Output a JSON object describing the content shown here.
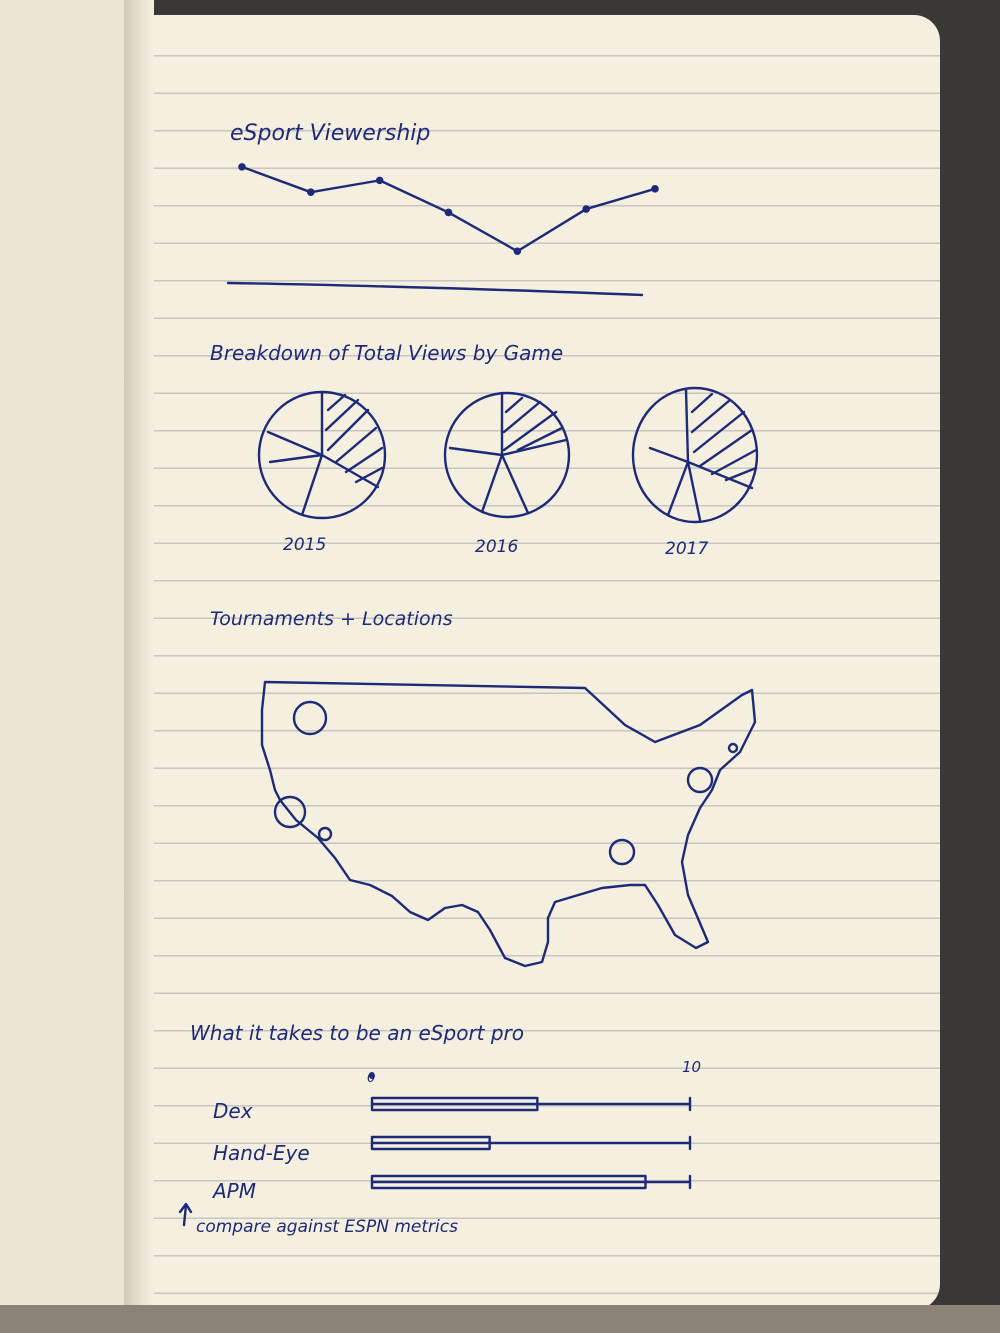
{
  "colors": {
    "ink": "#1d2a7a",
    "paper": "#f4efdf"
  },
  "chart_data": [
    {
      "type": "line",
      "title": "eSport Viewership",
      "x": [
        1,
        2,
        3,
        4,
        5,
        6,
        7
      ],
      "values": [
        7,
        5.5,
        6.2,
        4.3,
        2,
        4.5,
        5.7
      ],
      "ylim": [
        0,
        8
      ]
    },
    {
      "type": "pie",
      "title": "Breakdown of Total Views by Game",
      "categories": [
        "2015",
        "2016",
        "2017"
      ]
    },
    {
      "type": "map",
      "title": "Tournaments + Locations"
    },
    {
      "type": "bar",
      "title": "What it takes to be an eSport pro",
      "axis_min": "0",
      "axis_max": "10",
      "xlim": [
        0,
        10
      ],
      "categories": [
        "Dex",
        "Hand-Eye",
        "APM"
      ],
      "values": [
        5.2,
        3.7,
        8.6
      ],
      "annotation": "compare against ESPN metrics"
    }
  ]
}
